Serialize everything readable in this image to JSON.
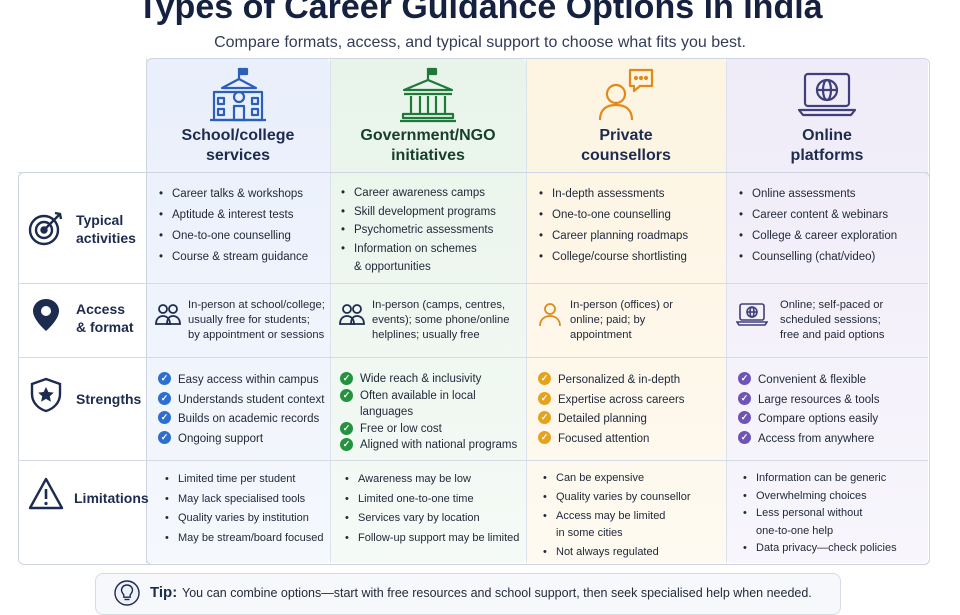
{
  "title": "Types of Career Guidance Options in India",
  "subtitle": "Compare formats, access, and typical support to choose what fits you best.",
  "colors": {
    "school": "#2c5fb8",
    "gov": "#1f7a3a",
    "private": "#e0a020",
    "online": "#6a4fb0"
  },
  "columns": [
    {
      "title_line1": "School/college",
      "title_line2": "services",
      "icon": "school-building-icon"
    },
    {
      "title_line1": "Government/NGO",
      "title_line2": "initiatives",
      "icon": "government-building-icon"
    },
    {
      "title_line1": "Private",
      "title_line2": "counsellors",
      "icon": "counsellor-chat-icon"
    },
    {
      "title_line1": "Online",
      "title_line2": "platforms",
      "icon": "laptop-globe-icon"
    }
  ],
  "rows": {
    "activities": {
      "label_line1": "Typical",
      "label_line2": "activities",
      "icon": "target-icon",
      "cells": [
        [
          "Career talks & workshops",
          "Aptitude & interest tests",
          "One-to-one counselling",
          "Course & stream guidance"
        ],
        [
          "Career awareness camps",
          "Skill development programs",
          "Psychometric assessments",
          "Information on schemes"
        ],
        [
          "In-depth assessments",
          "One-to-one counselling",
          "Career planning roadmaps",
          "College/course shortlisting"
        ],
        [
          "Online assessments",
          "Career content & webinars",
          "College & career exploration",
          "Counselling (chat/video)"
        ]
      ],
      "gov_extra_line": "& opportunities"
    },
    "access": {
      "label_line1": "Access",
      "label_line2": "& format",
      "icon": "location-pin-icon",
      "cells": [
        [
          "In-person at school/college;",
          "usually free for students;",
          "by appointment or sessions"
        ],
        [
          "In-person (camps, centres,",
          "events); some phone/online",
          "helplines; usually free"
        ],
        [
          "In-person (offices) or",
          "online; paid; by",
          "appointment"
        ],
        [
          "Online; self-paced or",
          "scheduled sessions;",
          "free and paid options"
        ]
      ]
    },
    "strengths": {
      "label": "Strengths",
      "icon": "shield-star-icon",
      "cells": [
        [
          "Easy access within campus",
          "Understands student context",
          "Builds on academic records",
          "Ongoing support"
        ],
        [
          "Wide reach & inclusivity",
          "Often available in local",
          "Free or low cost",
          "Aligned with national programs"
        ],
        [
          "Personalized & in-depth",
          "Expertise across careers",
          "Detailed planning",
          "Focused attention"
        ],
        [
          "Convenient & flexible",
          "Large resources & tools",
          "Compare options easily",
          "Access from anywhere"
        ]
      ],
      "gov_extra_line": "languages"
    },
    "limitations": {
      "label": "Limitations",
      "icon": "warning-triangle-icon",
      "cells": [
        [
          "Limited time per student",
          "May lack specialised tools",
          "Quality varies by institution",
          "May be stream/board focused"
        ],
        [
          "Awareness may be low",
          "Limited one-to-one time",
          "Services vary by location",
          "Follow-up support may be limited"
        ],
        [
          "Can be expensive",
          "Quality varies by counsellor",
          "Access may be limited",
          "Not always regulated"
        ],
        [
          "Information can be generic",
          "Overwhelming choices",
          "Less personal without",
          "Data privacy—check policies"
        ]
      ],
      "private_extra_line": "in some cities",
      "online_extra_line": "one-to-one help"
    }
  },
  "tip": {
    "label": "Tip:",
    "text": "You can combine options—start with free resources and school support, then seek specialised help when needed.",
    "icon": "lightbulb-icon"
  }
}
